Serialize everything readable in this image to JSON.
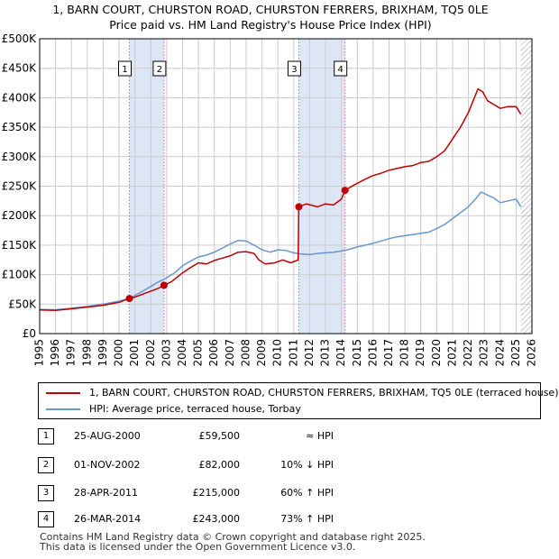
{
  "title_line1": "1, BARN COURT, CHURSTON ROAD, CHURSTON FERRERS, BRIXHAM, TQ5 0LE",
  "title_line2": "Price paid vs. HM Land Registry's House Price Index (HPI)",
  "colors": {
    "property": "#c00000",
    "hpi": "#6a96cc",
    "shade": "#dce6f5",
    "marker_line": "#e06a8a",
    "grid": "#cccccc"
  },
  "chart_data": {
    "type": "line",
    "xlim": [
      1995,
      2026
    ],
    "ylim": [
      0,
      500000
    ],
    "x_ticks": [
      "1995",
      "1996",
      "1997",
      "1998",
      "1999",
      "2000",
      "2001",
      "2002",
      "2003",
      "2004",
      "2005",
      "2006",
      "2007",
      "2008",
      "2009",
      "2010",
      "2011",
      "2012",
      "2013",
      "2014",
      "2015",
      "2016",
      "2017",
      "2018",
      "2019",
      "2020",
      "2021",
      "2022",
      "2023",
      "2024",
      "2025",
      "2026"
    ],
    "y_ticks": [
      {
        "value": 0,
        "label": "£0"
      },
      {
        "value": 50000,
        "label": "£50K"
      },
      {
        "value": 100000,
        "label": "£100K"
      },
      {
        "value": 150000,
        "label": "£150K"
      },
      {
        "value": 200000,
        "label": "£200K"
      },
      {
        "value": 250000,
        "label": "£250K"
      },
      {
        "value": 300000,
        "label": "£300K"
      },
      {
        "value": 350000,
        "label": "£350K"
      },
      {
        "value": 400000,
        "label": "£400K"
      },
      {
        "value": 450000,
        "label": "£450K"
      },
      {
        "value": 500000,
        "label": "£500K"
      }
    ],
    "shaded_ranges": [
      [
        2000.65,
        2002.83
      ],
      [
        2011.32,
        2014.23
      ]
    ],
    "hatched_after": 2025.3,
    "series": [
      {
        "name": "1, BARN COURT, CHURSTON ROAD, CHURSTON FERRERS, BRIXHAM, TQ5 0LE (terraced house)",
        "color": "#c00000",
        "points": [
          [
            1995.0,
            40000
          ],
          [
            1996.0,
            39500
          ],
          [
            1997.0,
            42000
          ],
          [
            1998.0,
            45000
          ],
          [
            1999.0,
            48000
          ],
          [
            2000.0,
            53000
          ],
          [
            2000.65,
            59500
          ],
          [
            2001.0,
            62000
          ],
          [
            2001.5,
            67000
          ],
          [
            2002.0,
            72000
          ],
          [
            2002.5,
            77000
          ],
          [
            2002.83,
            82000
          ],
          [
            2003.3,
            88000
          ],
          [
            2004.0,
            103000
          ],
          [
            2004.5,
            112000
          ],
          [
            2005.0,
            120000
          ],
          [
            2005.5,
            118000
          ],
          [
            2006.0,
            124000
          ],
          [
            2006.5,
            128000
          ],
          [
            2007.0,
            132000
          ],
          [
            2007.5,
            138000
          ],
          [
            2008.0,
            139000
          ],
          [
            2008.5,
            136000
          ],
          [
            2008.8,
            125000
          ],
          [
            2009.2,
            118000
          ],
          [
            2009.8,
            120000
          ],
          [
            2010.3,
            125000
          ],
          [
            2010.8,
            120000
          ],
          [
            2011.28,
            125000
          ],
          [
            2011.32,
            215000
          ],
          [
            2011.8,
            220000
          ],
          [
            2012.5,
            215000
          ],
          [
            2013.0,
            220000
          ],
          [
            2013.5,
            218000
          ],
          [
            2014.0,
            228000
          ],
          [
            2014.23,
            243000
          ],
          [
            2014.8,
            252000
          ],
          [
            2015.5,
            262000
          ],
          [
            2016.0,
            268000
          ],
          [
            2016.5,
            272000
          ],
          [
            2017.0,
            277000
          ],
          [
            2017.5,
            280000
          ],
          [
            2018.0,
            283000
          ],
          [
            2018.5,
            285000
          ],
          [
            2019.0,
            290000
          ],
          [
            2019.5,
            292000
          ],
          [
            2020.0,
            300000
          ],
          [
            2020.5,
            310000
          ],
          [
            2021.0,
            330000
          ],
          [
            2021.5,
            350000
          ],
          [
            2022.0,
            375000
          ],
          [
            2022.3,
            395000
          ],
          [
            2022.6,
            415000
          ],
          [
            2022.9,
            410000
          ],
          [
            2023.2,
            395000
          ],
          [
            2023.5,
            390000
          ],
          [
            2024.0,
            382000
          ],
          [
            2024.5,
            385000
          ],
          [
            2025.0,
            385000
          ],
          [
            2025.3,
            372000
          ]
        ]
      },
      {
        "name": "HPI: Average price, terraced house, Torbay",
        "color": "#6a96cc",
        "points": [
          [
            1995.0,
            41000
          ],
          [
            1996.0,
            40500
          ],
          [
            1997.0,
            43000
          ],
          [
            1998.0,
            46000
          ],
          [
            1999.0,
            50000
          ],
          [
            2000.0,
            55000
          ],
          [
            2000.65,
            60000
          ],
          [
            2001.0,
            65000
          ],
          [
            2001.5,
            72000
          ],
          [
            2002.0,
            80000
          ],
          [
            2002.5,
            88000
          ],
          [
            2002.83,
            92000
          ],
          [
            2003.5,
            103000
          ],
          [
            2004.0,
            115000
          ],
          [
            2004.5,
            123000
          ],
          [
            2005.0,
            130000
          ],
          [
            2005.5,
            133000
          ],
          [
            2006.0,
            138000
          ],
          [
            2006.5,
            145000
          ],
          [
            2007.0,
            152000
          ],
          [
            2007.5,
            158000
          ],
          [
            2008.0,
            157000
          ],
          [
            2008.5,
            150000
          ],
          [
            2009.0,
            142000
          ],
          [
            2009.5,
            138000
          ],
          [
            2010.0,
            142000
          ],
          [
            2010.5,
            141000
          ],
          [
            2011.0,
            137000
          ],
          [
            2011.5,
            135000
          ],
          [
            2012.0,
            134000
          ],
          [
            2012.5,
            136000
          ],
          [
            2013.0,
            137000
          ],
          [
            2013.5,
            138000
          ],
          [
            2014.0,
            140000
          ],
          [
            2014.5,
            143000
          ],
          [
            2015.0,
            147000
          ],
          [
            2015.5,
            150000
          ],
          [
            2016.0,
            153000
          ],
          [
            2016.5,
            157000
          ],
          [
            2017.0,
            161000
          ],
          [
            2017.5,
            164000
          ],
          [
            2018.0,
            166000
          ],
          [
            2018.5,
            168000
          ],
          [
            2019.0,
            170000
          ],
          [
            2019.5,
            172000
          ],
          [
            2020.0,
            178000
          ],
          [
            2020.5,
            185000
          ],
          [
            2021.0,
            195000
          ],
          [
            2021.5,
            205000
          ],
          [
            2022.0,
            215000
          ],
          [
            2022.5,
            230000
          ],
          [
            2022.8,
            240000
          ],
          [
            2023.2,
            235000
          ],
          [
            2023.6,
            230000
          ],
          [
            2024.0,
            222000
          ],
          [
            2024.5,
            225000
          ],
          [
            2025.0,
            228000
          ],
          [
            2025.3,
            215000
          ]
        ]
      }
    ],
    "sales": [
      {
        "label": "1",
        "x": 2000.65,
        "y": 59500
      },
      {
        "label": "2",
        "x": 2002.83,
        "y": 82000
      },
      {
        "label": "3",
        "x": 2011.32,
        "y": 215000
      },
      {
        "label": "4",
        "x": 2014.23,
        "y": 243000
      }
    ]
  },
  "legend": {
    "property": "1, BARN COURT, CHURSTON ROAD, CHURSTON FERRERS, BRIXHAM, TQ5 0LE (terraced house)",
    "hpi": "HPI: Average price, terraced house, Torbay"
  },
  "transactions": [
    {
      "num": "1",
      "date": "25-AUG-2000",
      "price": "£59,500",
      "hpi": "≈ HPI"
    },
    {
      "num": "2",
      "date": "01-NOV-2002",
      "price": "£82,000",
      "hpi": "10% ↓ HPI"
    },
    {
      "num": "3",
      "date": "28-APR-2011",
      "price": "£215,000",
      "hpi": "60% ↑ HPI"
    },
    {
      "num": "4",
      "date": "26-MAR-2014",
      "price": "£243,000",
      "hpi": "73% ↑ HPI"
    }
  ],
  "footer_line1": "Contains HM Land Registry data © Crown copyright and database right 2025.",
  "footer_line2": "This data is licensed under the Open Government Licence v3.0."
}
